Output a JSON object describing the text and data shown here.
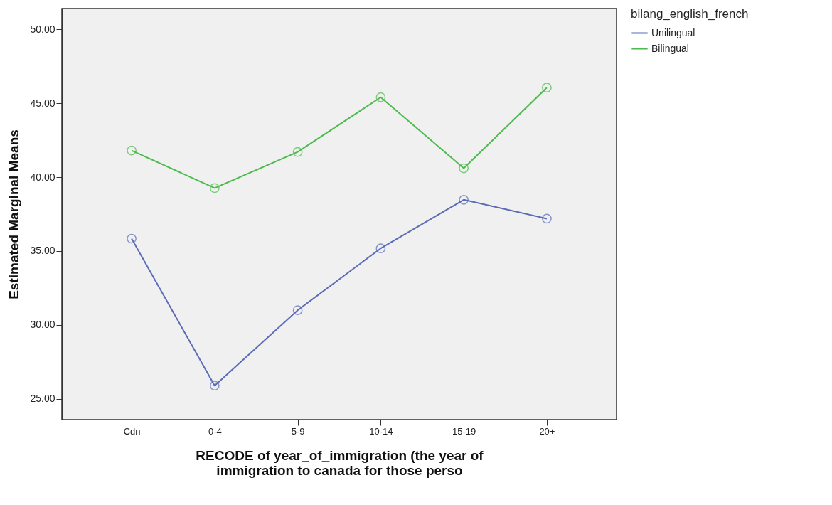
{
  "chart_data": {
    "type": "line",
    "xlabel": "RECODE of year_of_immigration (the year of\nimmigration to canada for those perso",
    "ylabel": "Estimated Marginal Means",
    "legend_title": "bilang_english_french",
    "categories": [
      "Cdn",
      "0-4",
      "5-9",
      "10-14",
      "15-19",
      "20+"
    ],
    "series": [
      {
        "name": "Unilingual",
        "color": "#5b6bb8",
        "values": [
          35.84,
          25.9,
          31.0,
          35.18,
          38.47,
          37.19
        ]
      },
      {
        "name": "Bilingual",
        "color": "#4cbb4c",
        "values": [
          41.8,
          39.26,
          41.7,
          45.4,
          40.6,
          46.05
        ]
      }
    ],
    "ylim": [
      23.6,
      51.4
    ],
    "yticks": [
      {
        "value": 25,
        "label": "25.00"
      },
      {
        "value": 30,
        "label": "30.00"
      },
      {
        "value": 35,
        "label": "35.00"
      },
      {
        "value": 40,
        "label": "40.00"
      },
      {
        "value": 45,
        "label": "45.00"
      },
      {
        "value": 50,
        "label": "50.00"
      }
    ],
    "grid": false,
    "legend": "top right",
    "marker": "circle",
    "line_style": "solid"
  }
}
